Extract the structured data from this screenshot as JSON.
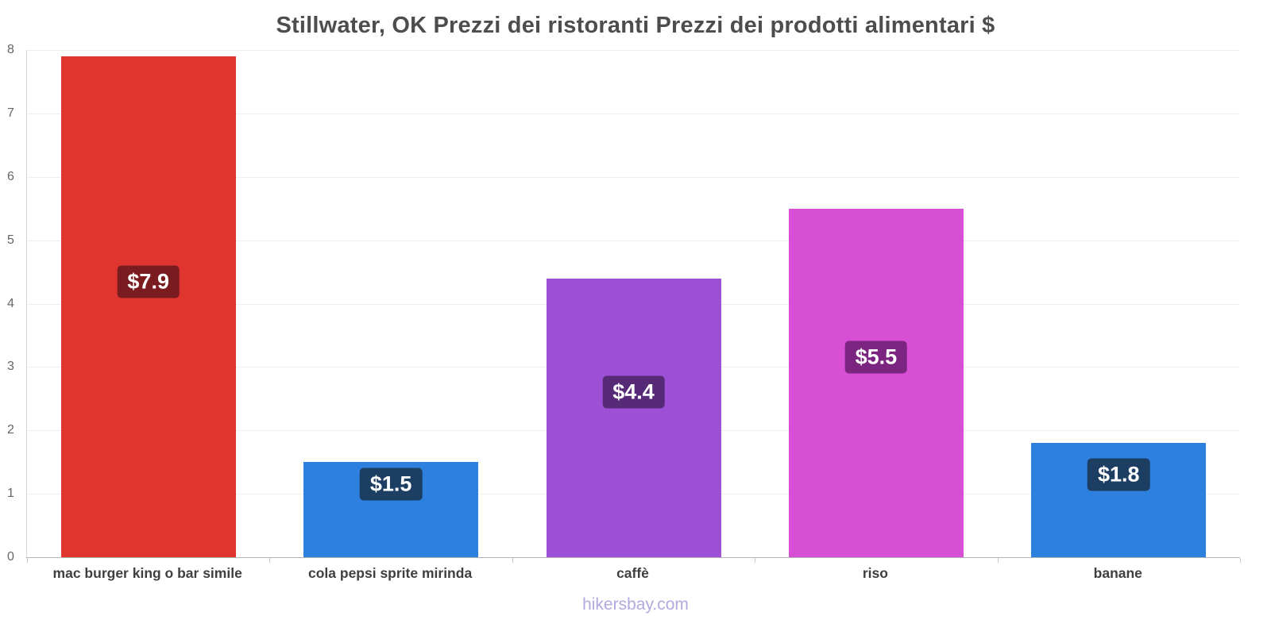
{
  "chart_data": {
    "type": "bar",
    "title": "Stillwater, OK Prezzi dei ristoranti Prezzi dei prodotti alimentari $",
    "categories": [
      "mac burger king o bar simile",
      "cola pepsi sprite mirinda",
      "caffè",
      "riso",
      "banane"
    ],
    "values": [
      7.9,
      1.5,
      4.4,
      5.5,
      1.8
    ],
    "value_labels": [
      "$7.9",
      "$1.5",
      "$4.4",
      "$5.5",
      "$1.8"
    ],
    "bar_colors": [
      "#e0342f",
      "#2e80de",
      "#9d4fd6",
      "#d64fd4",
      "#2e80de"
    ],
    "badge_colors": [
      "#7a1b1f",
      "#1d3e63",
      "#572a77",
      "#7b2480",
      "#1d3e63"
    ],
    "ylim": [
      0,
      8
    ],
    "yticks": [
      0,
      1,
      2,
      3,
      4,
      5,
      6,
      7,
      8
    ],
    "grid": true,
    "legend_position": "none",
    "currency": "$"
  },
  "footer": {
    "label": "hikersbay.com"
  }
}
